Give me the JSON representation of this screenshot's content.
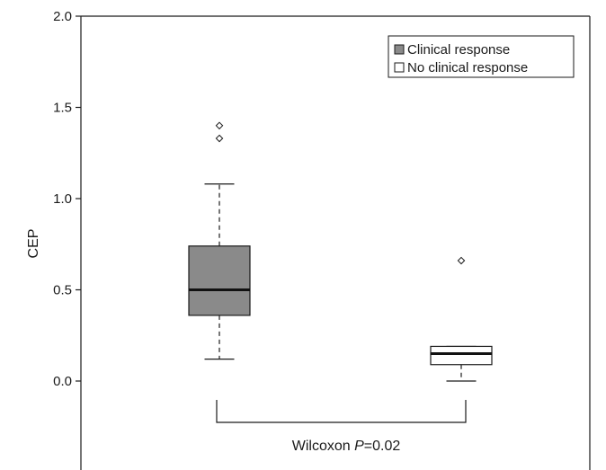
{
  "chart_data": {
    "type": "box",
    "ylabel": "CEP",
    "ylim": [
      -0.42,
      2.0
    ],
    "yticks": [
      0.0,
      0.5,
      1.0,
      1.5,
      2.0
    ],
    "ytick_labels": [
      "0.0",
      "0.5",
      "1.0",
      "1.5",
      "2.0"
    ],
    "grid": false,
    "legend_position": "top-right",
    "series": [
      {
        "name": "Clinical response",
        "color": "#8a8a8a",
        "whisker_low": 0.12,
        "q1": 0.36,
        "median": 0.5,
        "q3": 0.74,
        "whisker_high": 1.08,
        "outliers": [
          1.33,
          1.4
        ]
      },
      {
        "name": "No clinical response",
        "color": "#ffffff",
        "whisker_low": 0.0,
        "q1": 0.09,
        "median": 0.15,
        "q3": 0.19,
        "whisker_high": 0.19,
        "outliers": [
          0.66
        ]
      }
    ],
    "annotation": {
      "prefix": "Wilcoxon ",
      "italic": "P",
      "suffix": "=0.02"
    }
  }
}
